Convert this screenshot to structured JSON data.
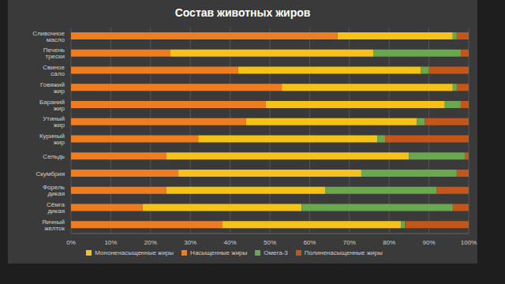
{
  "chart_data": {
    "type": "bar",
    "title": "Состав животных жиров",
    "orientation": "horizontal",
    "stacked": true,
    "grid": true,
    "legend": "bottom",
    "categories": [
      "Сливочное масло",
      "Печень трески",
      "Свиное сало",
      "Говяжий жир",
      "Бараний жир",
      "Утиный жир",
      "Куриный жир",
      "Сельдь",
      "Скумбрия",
      "Форель дикая",
      "Сёмга дикая",
      "Яичный желток"
    ],
    "series": [
      {
        "name": "Насыщенные жиры",
        "color": "#ee7d22",
        "values": [
          67,
          25,
          42,
          53,
          49,
          44,
          32,
          24,
          27,
          24,
          18,
          38
        ]
      },
      {
        "name": "Мононенасыщенные жиры",
        "color": "#f5c218",
        "values": [
          29,
          51,
          46,
          43,
          45,
          43,
          45,
          61,
          46,
          40,
          40,
          45
        ]
      },
      {
        "name": "Омега-3",
        "color": "#6aa84f",
        "values": [
          1,
          22,
          2,
          1,
          4,
          2,
          2,
          14,
          24,
          28,
          38,
          1
        ]
      },
      {
        "name": "Полиненасыщенные жиры",
        "color": "#c4561a",
        "values": [
          3,
          2,
          10,
          3,
          2,
          11,
          21,
          1,
          3,
          8,
          4,
          16
        ]
      }
    ],
    "xlim": [
      0,
      100
    ],
    "xticks": [
      {
        "value": 0,
        "label": "0%"
      },
      {
        "value": 10,
        "label": "10%"
      },
      {
        "value": 20,
        "label": "20%"
      },
      {
        "value": 30,
        "label": "30%"
      },
      {
        "value": 40,
        "label": "40%"
      },
      {
        "value": 50,
        "label": "50%"
      },
      {
        "value": 60,
        "label": "60%"
      },
      {
        "value": 70,
        "label": "70%"
      },
      {
        "value": 80,
        "label": "80%"
      },
      {
        "value": 90,
        "label": "90%"
      },
      {
        "value": 100,
        "label": "100%"
      }
    ]
  }
}
